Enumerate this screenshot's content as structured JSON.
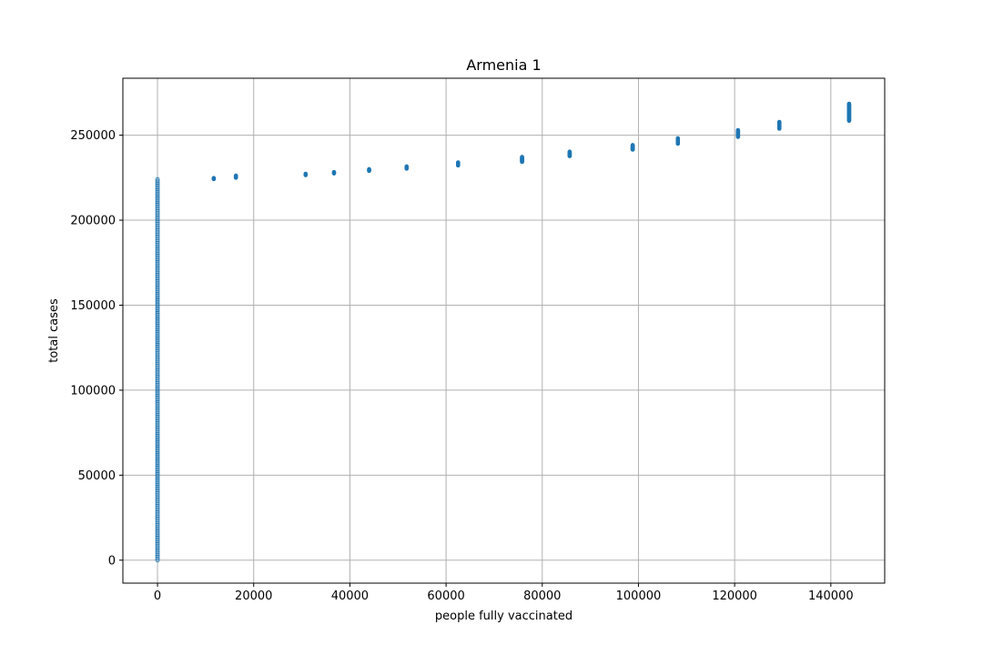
{
  "chart_data": {
    "type": "scatter",
    "title": "Armenia 1",
    "xlabel": "people fully vaccinated",
    "ylabel": "total cases",
    "xlim": [
      -7200,
      151200
    ],
    "ylim": [
      -13500,
      283500
    ],
    "xticks": [
      0,
      20000,
      40000,
      60000,
      80000,
      100000,
      120000,
      140000
    ],
    "yticks": [
      0,
      50000,
      100000,
      150000,
      200000,
      250000
    ],
    "grid": true,
    "legend": "none",
    "color": "#1f77b4",
    "clusters": [
      {
        "x": 0,
        "y_min": 0,
        "y_max": 224000
      },
      {
        "x": 11700,
        "y_min": 224200,
        "y_max": 224800
      },
      {
        "x": 16300,
        "y_min": 225000,
        "y_max": 226200
      },
      {
        "x": 30800,
        "y_min": 226500,
        "y_max": 227300
      },
      {
        "x": 36700,
        "y_min": 227500,
        "y_max": 228300
      },
      {
        "x": 44000,
        "y_min": 229000,
        "y_max": 230000
      },
      {
        "x": 51800,
        "y_min": 230300,
        "y_max": 231600
      },
      {
        "x": 62500,
        "y_min": 232200,
        "y_max": 234000
      },
      {
        "x": 75800,
        "y_min": 234300,
        "y_max": 237200
      },
      {
        "x": 85700,
        "y_min": 237700,
        "y_max": 240300
      },
      {
        "x": 98800,
        "y_min": 241500,
        "y_max": 244200
      },
      {
        "x": 108200,
        "y_min": 245000,
        "y_max": 248200
      },
      {
        "x": 120700,
        "y_min": 249000,
        "y_max": 253000
      },
      {
        "x": 129300,
        "y_min": 253800,
        "y_max": 257800
      },
      {
        "x": 143800,
        "y_min": 258500,
        "y_max": 268500
      }
    ]
  }
}
